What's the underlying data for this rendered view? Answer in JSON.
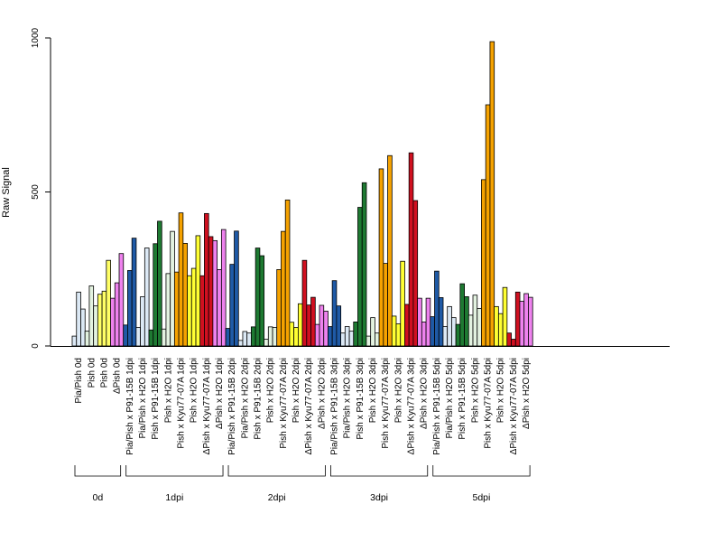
{
  "chart_data": {
    "type": "bar",
    "title": "",
    "xlabel": "",
    "ylabel": "Raw Signal",
    "ylim": [
      0,
      1000
    ],
    "yticks": [
      "0",
      "500",
      "1000"
    ],
    "grid": false,
    "legend": "none",
    "colors": {
      "Pia/Pish": "#dce9f5",
      "Pish": "#e3f2e0",
      "Pish_0d": "#ffff66",
      "dPish": "#ee82ee",
      "P91-15B": "#1f5aa6",
      "Pia/Pish x H2O": "#dce9f5",
      "Pish x P91-15B": "#1e7a32",
      "Pish x H2O": "#e3f2e0",
      "Pish x Kyu77-07A": "#f5a200",
      "Pish x H2O (yellow)": "#ffff33",
      "dPish x Kyu77-07A": "#d01020",
      "dPish x H2O": "#ee82ee"
    },
    "categories": [
      "Pia/Pish 0d",
      "Pish 0d",
      "Pish 0d",
      "ΔPish 0d",
      "Pia/Pish x P91-15B 1dpi",
      "Pia/Pish x H2O 1dpi",
      "Pish x P91-15B 1dpi",
      "Pish x H2O 1dpi",
      "Pish x Kyu77-07A 1dpi",
      "Pish x H2O 1dpi",
      "ΔPish x Kyu77-07A 1dpi",
      "ΔPish x H2O 1dpi",
      "Pia/Pish x P91-15B 2dpi",
      "Pia/Pish x H2O 2dpi",
      "Pish x P91-15B 2dpi",
      "Pish x H2O 2dpi",
      "Pish x Kyu77-07A 2dpi",
      "Pish x H2O 2dpi",
      "ΔPish x Kyu77-07A 2dpi",
      "ΔPish x H2O 2dpi",
      "Pia/Pish x P91-15B 3dpi",
      "Pia/Pish x H2O 3dpi",
      "Pish x P91-15B 3dpi",
      "Pish x H2O 3dpi",
      "Pish x Kyu77-07A 3dpi",
      "Pish x H2O 3dpi",
      "ΔPish x Kyu77-07A 3dpi",
      "ΔPish x H2O 3dpi",
      "Pia/Pish x P91-15B 5dpi",
      "Pia/Pish x H2O 5dpi",
      "Pish x P91-15B 5dpi",
      "Pish x H2O 5dpi",
      "Pish x Kyu77-07A 5dpi",
      "Pish x H2O 5dpi",
      "ΔPish x Kyu77-07A 5dpi",
      "ΔPish x H2O 5dpi"
    ],
    "bar_colors": [
      "#dce9f5",
      "#e3f2e0",
      "#ffff66",
      "#ee82ee",
      "#1f5aa6",
      "#dce9f5",
      "#1e7a32",
      "#e3f2e0",
      "#f5a200",
      "#ffff33",
      "#d01020",
      "#ee82ee",
      "#1f5aa6",
      "#dce9f5",
      "#1e7a32",
      "#e3f2e0",
      "#f5a200",
      "#ffff33",
      "#d01020",
      "#ee82ee",
      "#1f5aa6",
      "#dce9f5",
      "#1e7a32",
      "#e3f2e0",
      "#f5a200",
      "#ffff33",
      "#d01020",
      "#ee82ee",
      "#1f5aa6",
      "#dce9f5",
      "#1e7a32",
      "#e3f2e0",
      "#f5a200",
      "#ffff33",
      "#d01020",
      "#ee82ee"
    ],
    "values": [
      [
        32,
        175,
        120
      ],
      [
        48,
        195,
        130
      ],
      [
        168,
        178,
        278
      ],
      [
        155,
        205,
        300
      ],
      [
        68,
        245,
        350
      ],
      [
        60,
        160,
        318
      ],
      [
        52,
        332,
        405
      ],
      [
        55,
        235,
        372
      ],
      [
        240,
        432,
        333
      ],
      [
        228,
        252,
        358
      ],
      [
        228,
        430,
        355
      ],
      [
        342,
        248,
        378
      ],
      [
        57,
        265,
        373
      ],
      [
        18,
        47,
        42
      ],
      [
        62,
        318,
        293
      ],
      [
        22,
        62,
        60
      ],
      [
        248,
        372,
        474
      ],
      [
        77,
        60,
        137
      ],
      [
        278,
        133,
        158
      ],
      [
        70,
        132,
        113
      ],
      [
        63,
        212,
        130
      ],
      [
        42,
        63,
        48
      ],
      [
        78,
        450,
        530
      ],
      [
        32,
        92,
        42
      ],
      [
        575,
        268,
        618
      ],
      [
        97,
        72,
        275
      ],
      [
        135,
        627,
        472
      ],
      [
        155,
        78,
        155
      ],
      [
        95,
        243,
        157
      ],
      [
        63,
        128,
        92
      ],
      [
        70,
        202,
        160
      ],
      [
        100,
        165,
        122
      ],
      [
        540,
        783,
        988
      ],
      [
        128,
        105,
        190
      ],
      [
        42,
        22,
        175
      ],
      [
        145,
        170,
        158
      ]
    ],
    "groups": [
      {
        "label": "0d",
        "start": 0,
        "end": 3
      },
      {
        "label": "1dpi",
        "start": 4,
        "end": 11
      },
      {
        "label": "2dpi",
        "start": 12,
        "end": 19
      },
      {
        "label": "3dpi",
        "start": 20,
        "end": 27
      },
      {
        "label": "5dpi",
        "start": 28,
        "end": 35
      }
    ]
  }
}
